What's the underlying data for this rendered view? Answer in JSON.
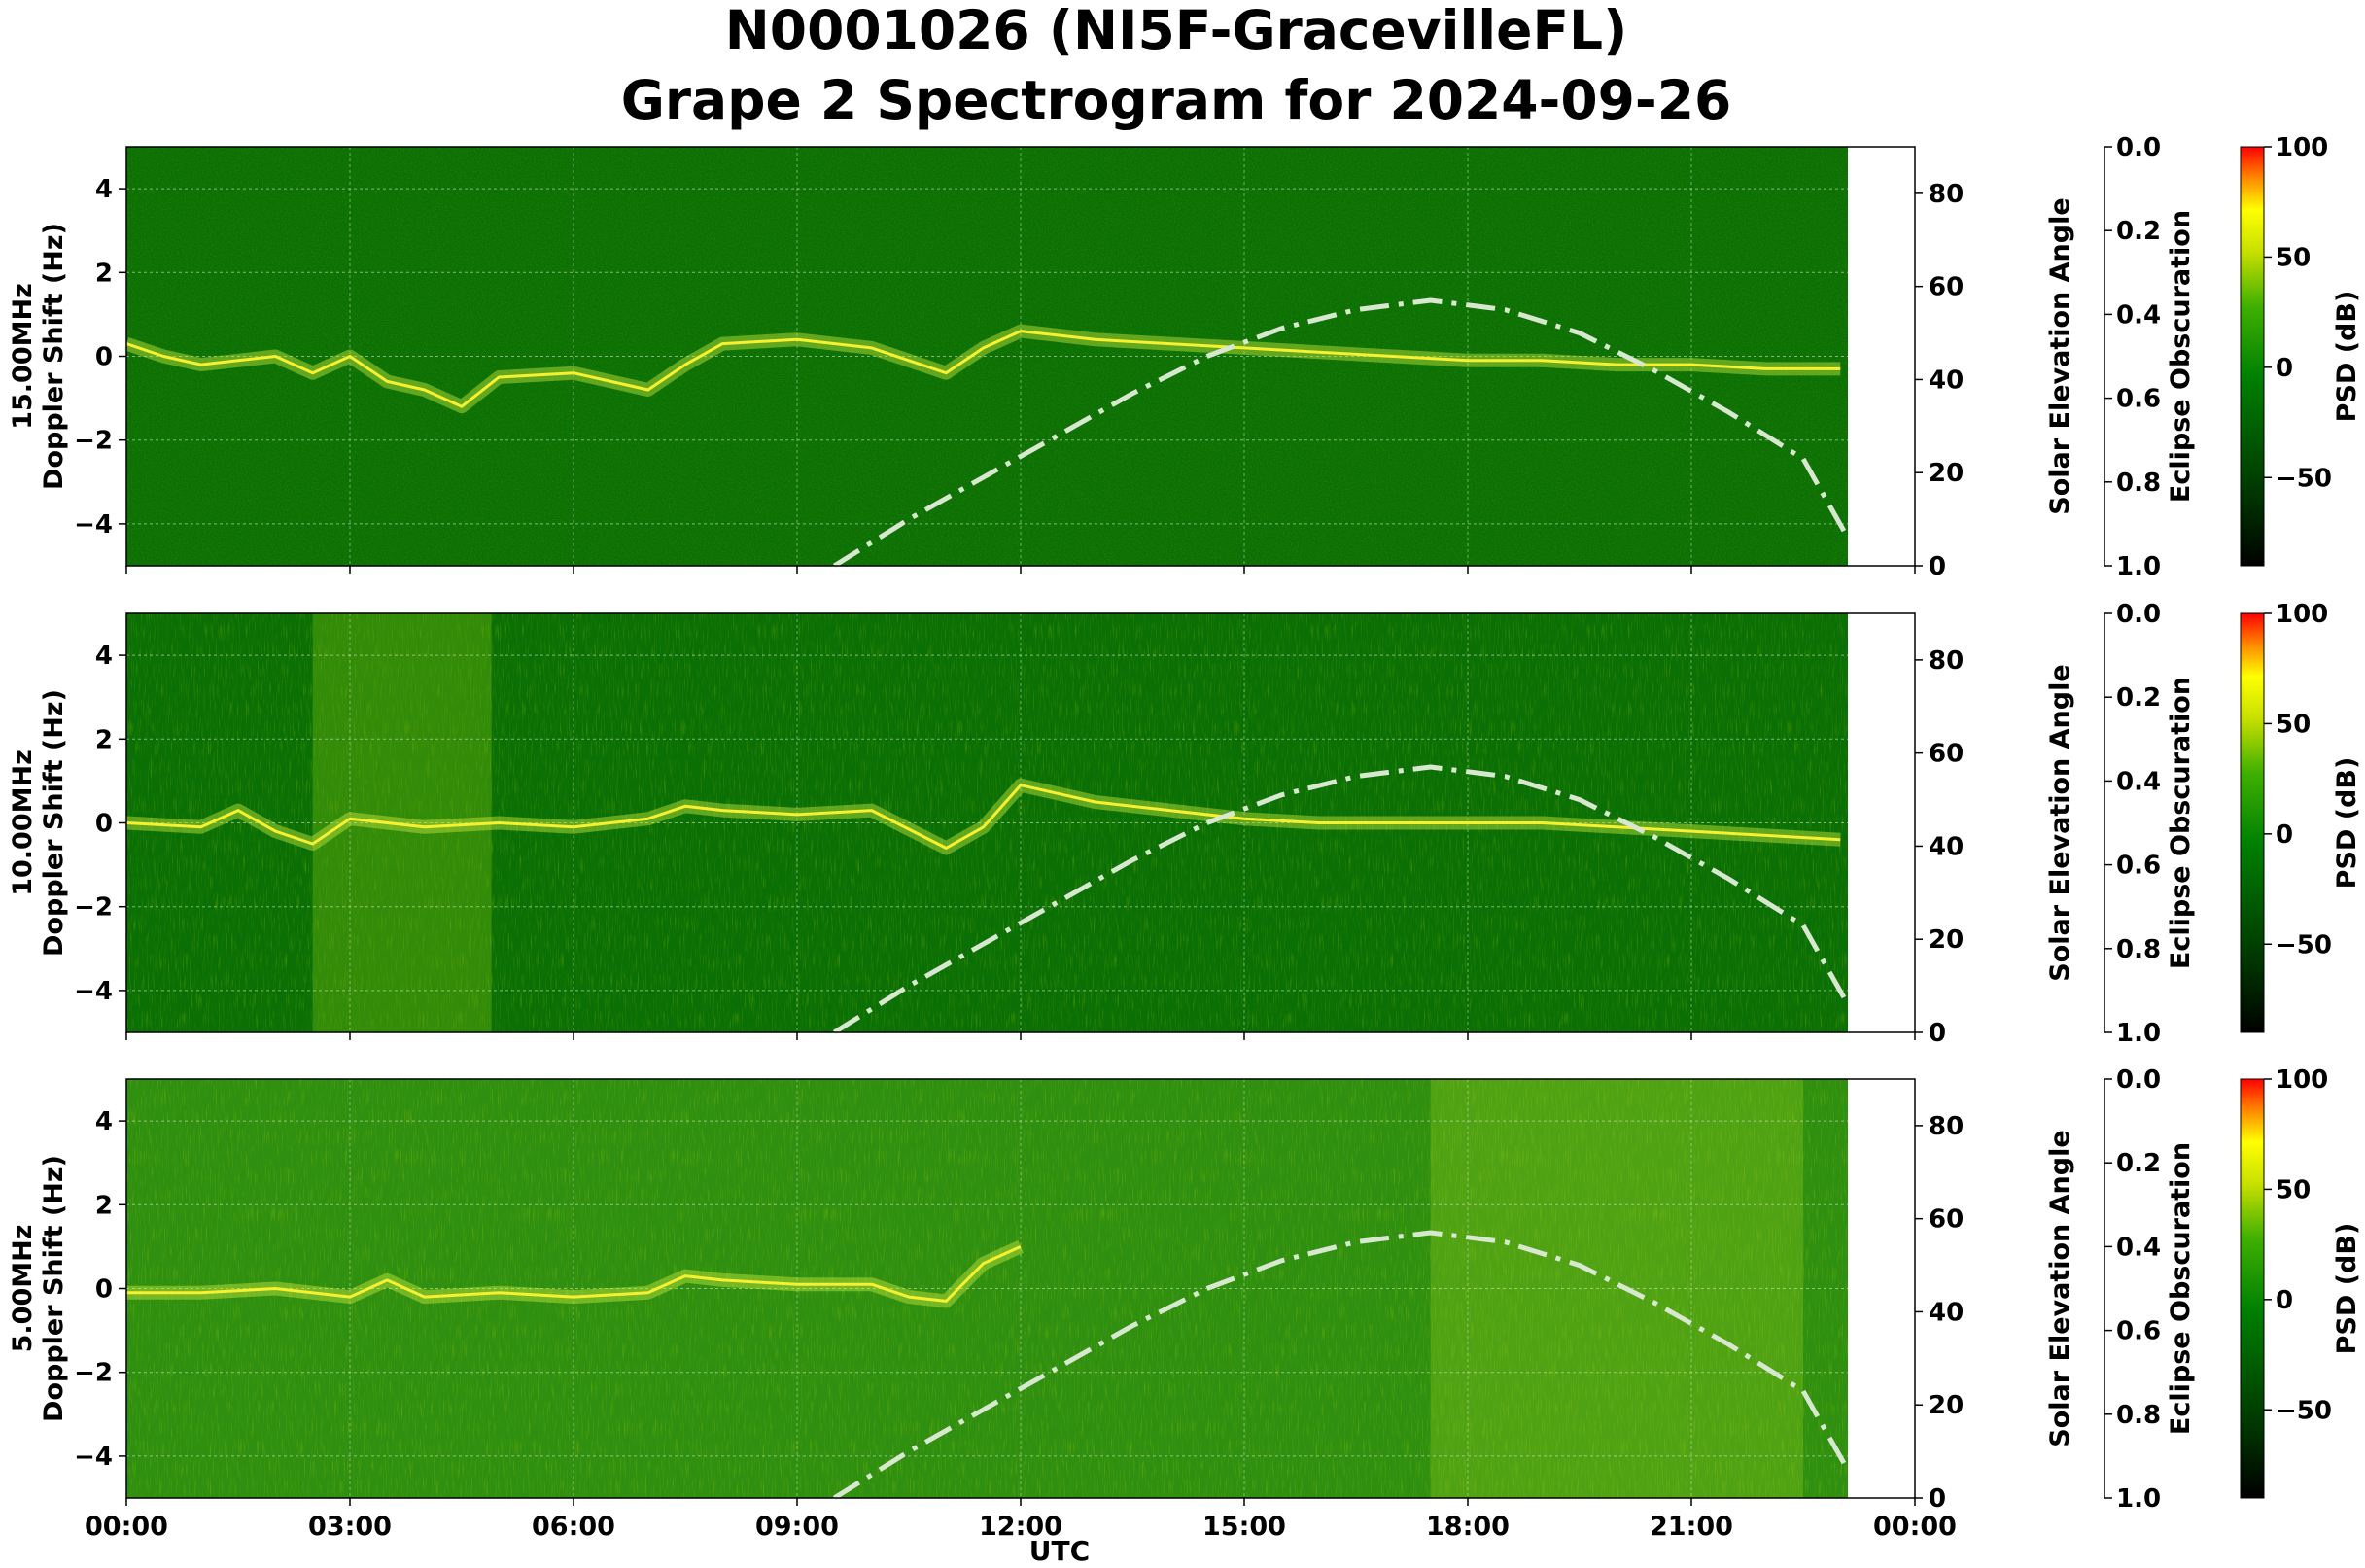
{
  "title": {
    "line1": "N0001026 (NI5F-GracevilleFL)",
    "line2": "Grape 2 Spectrogram for 2024-09-26"
  },
  "xlabel": "UTC",
  "colors": {
    "background": "#006400",
    "sun_curve": "#d8e8d0",
    "grid": "#cfe6c8"
  },
  "chart_data": [
    {
      "type": "heatmap",
      "panel": "15.00MHz",
      "ylabel_line1": "15.00MHz",
      "ylabel_line2": "Doppler Shift (Hz)",
      "xlim_hours": [
        0,
        24
      ],
      "ylim": [
        -5,
        5
      ],
      "yticks": [
        -4,
        -2,
        0,
        2,
        4
      ],
      "data_end_hour": 23.1,
      "right_axis": {
        "label": "Solar Elevation Angle",
        "ylim": [
          0,
          90
        ],
        "ticks": [
          0,
          20,
          40,
          60,
          80
        ]
      },
      "eclipse_axis": {
        "label": "Eclipse Obscuration",
        "ylim": [
          1.0,
          0.0
        ],
        "ticks": [
          "0.0",
          "0.2",
          "0.4",
          "0.6",
          "0.8",
          "1.0"
        ]
      },
      "colorbar": {
        "label": "PSD (dB)",
        "range": [
          -90,
          100
        ],
        "ticks": [
          100,
          50,
          0,
          -50
        ]
      },
      "doppler_trace": [
        [
          0,
          0.3
        ],
        [
          0.5,
          0
        ],
        [
          1,
          -0.2
        ],
        [
          1.5,
          -0.1
        ],
        [
          2,
          0
        ],
        [
          2.5,
          -0.4
        ],
        [
          3,
          0
        ],
        [
          3.5,
          -0.6
        ],
        [
          4,
          -0.8
        ],
        [
          4.5,
          -1.2
        ],
        [
          5,
          -0.5
        ],
        [
          6,
          -0.4
        ],
        [
          7,
          -0.8
        ],
        [
          7.5,
          -0.2
        ],
        [
          8,
          0.3
        ],
        [
          9,
          0.4
        ],
        [
          10,
          0.2
        ],
        [
          11,
          -0.4
        ],
        [
          11.5,
          0.2
        ],
        [
          12,
          0.6
        ],
        [
          12.5,
          0.5
        ],
        [
          13,
          0.4
        ],
        [
          14,
          0.3
        ],
        [
          15,
          0.2
        ],
        [
          16,
          0.1
        ],
        [
          17,
          0
        ],
        [
          18,
          -0.1
        ],
        [
          19,
          -0.1
        ],
        [
          20,
          -0.2
        ],
        [
          21,
          -0.2
        ],
        [
          22,
          -0.3
        ],
        [
          23,
          -0.3
        ]
      ],
      "solar_elevation": [
        [
          9.5,
          0
        ],
        [
          10.5,
          10
        ],
        [
          11.5,
          19
        ],
        [
          12.5,
          28
        ],
        [
          13.5,
          37
        ],
        [
          14.5,
          45
        ],
        [
          15.5,
          51
        ],
        [
          16.5,
          55
        ],
        [
          17.5,
          57
        ],
        [
          18.5,
          55
        ],
        [
          19.5,
          50
        ],
        [
          20.5,
          42
        ],
        [
          21.5,
          33
        ],
        [
          22.5,
          23
        ],
        [
          23.1,
          6
        ]
      ]
    },
    {
      "type": "heatmap",
      "panel": "10.00MHz",
      "ylabel_line1": "10.00MHz",
      "ylabel_line2": "Doppler Shift (Hz)",
      "xlim_hours": [
        0,
        24
      ],
      "ylim": [
        -5,
        5
      ],
      "yticks": [
        -4,
        -2,
        0,
        2,
        4
      ],
      "data_end_hour": 23.1,
      "right_axis": {
        "label": "Solar Elevation Angle",
        "ylim": [
          0,
          90
        ],
        "ticks": [
          0,
          20,
          40,
          60,
          80
        ]
      },
      "eclipse_axis": {
        "label": "Eclipse Obscuration",
        "ylim": [
          1.0,
          0.0
        ],
        "ticks": [
          "0.0",
          "0.2",
          "0.4",
          "0.6",
          "0.8",
          "1.0"
        ]
      },
      "colorbar": {
        "label": "PSD (dB)",
        "range": [
          -90,
          100
        ],
        "ticks": [
          100,
          50,
          0,
          -50
        ]
      },
      "doppler_trace": [
        [
          0,
          0
        ],
        [
          1,
          -0.1
        ],
        [
          1.5,
          0.3
        ],
        [
          2,
          -0.2
        ],
        [
          2.5,
          -0.5
        ],
        [
          3,
          0.1
        ],
        [
          4,
          -0.1
        ],
        [
          5,
          0
        ],
        [
          6,
          -0.1
        ],
        [
          7,
          0.1
        ],
        [
          7.5,
          0.4
        ],
        [
          8,
          0.3
        ],
        [
          9,
          0.2
        ],
        [
          10,
          0.3
        ],
        [
          11,
          -0.6
        ],
        [
          11.5,
          -0.1
        ],
        [
          12,
          0.9
        ],
        [
          13,
          0.5
        ],
        [
          14,
          0.3
        ],
        [
          15,
          0.1
        ],
        [
          16,
          0
        ],
        [
          17,
          0
        ],
        [
          18,
          0
        ],
        [
          19,
          0
        ],
        [
          20,
          -0.1
        ],
        [
          21,
          -0.2
        ],
        [
          22,
          -0.3
        ],
        [
          23,
          -0.4
        ]
      ],
      "solar_elevation": [
        [
          9.5,
          0
        ],
        [
          10.5,
          10
        ],
        [
          11.5,
          19
        ],
        [
          12.5,
          28
        ],
        [
          13.5,
          37
        ],
        [
          14.5,
          45
        ],
        [
          15.5,
          51
        ],
        [
          16.5,
          55
        ],
        [
          17.5,
          57
        ],
        [
          18.5,
          55
        ],
        [
          19.5,
          50
        ],
        [
          20.5,
          42
        ],
        [
          21.5,
          33
        ],
        [
          22.5,
          23
        ],
        [
          23.1,
          6
        ]
      ]
    },
    {
      "type": "heatmap",
      "panel": "5.00MHz",
      "ylabel_line1": "5.00MHz",
      "ylabel_line2": "Doppler Shift (Hz)",
      "xlim_hours": [
        0,
        24
      ],
      "ylim": [
        -5,
        5
      ],
      "yticks": [
        -4,
        -2,
        0,
        2,
        4
      ],
      "xticks": [
        "00:00",
        "03:00",
        "06:00",
        "09:00",
        "12:00",
        "15:00",
        "18:00",
        "21:00",
        "00:00"
      ],
      "data_end_hour": 23.1,
      "right_axis": {
        "label": "Solar Elevation Angle",
        "ylim": [
          0,
          90
        ],
        "ticks": [
          0,
          20,
          40,
          60,
          80
        ]
      },
      "eclipse_axis": {
        "label": "Eclipse Obscuration",
        "ylim": [
          1.0,
          0.0
        ],
        "ticks": [
          "0.0",
          "0.2",
          "0.4",
          "0.6",
          "0.8",
          "1.0"
        ]
      },
      "colorbar": {
        "label": "PSD (dB)",
        "range": [
          -90,
          100
        ],
        "ticks": [
          100,
          50,
          0,
          -50
        ]
      },
      "doppler_trace": [
        [
          0,
          -0.1
        ],
        [
          1,
          -0.1
        ],
        [
          2,
          0
        ],
        [
          3,
          -0.2
        ],
        [
          3.5,
          0.2
        ],
        [
          4,
          -0.2
        ],
        [
          5,
          -0.1
        ],
        [
          6,
          -0.2
        ],
        [
          7,
          -0.1
        ],
        [
          7.5,
          0.3
        ],
        [
          8,
          0.2
        ],
        [
          9,
          0.1
        ],
        [
          10,
          0.1
        ],
        [
          10.5,
          -0.2
        ],
        [
          11,
          -0.3
        ],
        [
          11.5,
          0.6
        ],
        [
          12,
          1.0
        ]
      ],
      "solar_elevation": [
        [
          9.5,
          0
        ],
        [
          10.5,
          10
        ],
        [
          11.5,
          19
        ],
        [
          12.5,
          28
        ],
        [
          13.5,
          37
        ],
        [
          14.5,
          45
        ],
        [
          15.5,
          51
        ],
        [
          16.5,
          55
        ],
        [
          17.5,
          57
        ],
        [
          18.5,
          55
        ],
        [
          19.5,
          50
        ],
        [
          20.5,
          42
        ],
        [
          21.5,
          33
        ],
        [
          22.5,
          23
        ],
        [
          23.1,
          6
        ]
      ]
    }
  ]
}
